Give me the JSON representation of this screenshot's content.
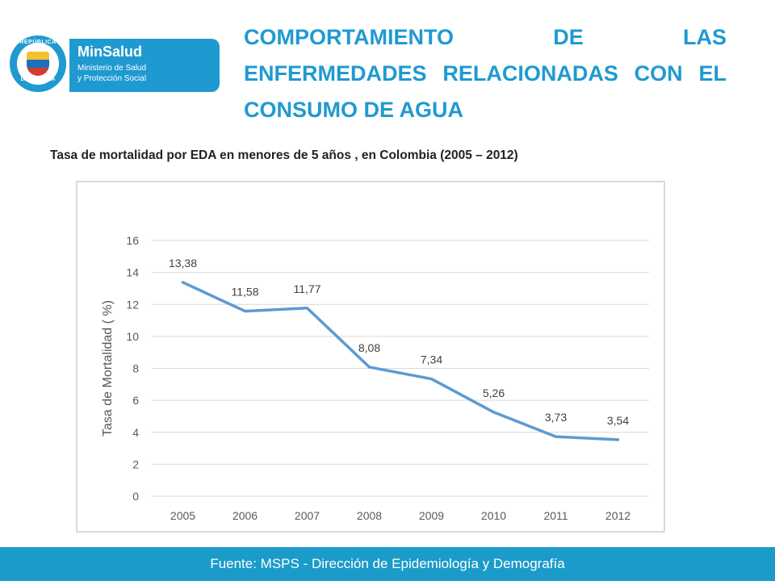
{
  "logo": {
    "crest_top": "REPÚBLICA",
    "crest_bottom": "DE COLOMBIA",
    "brand": "MinSalud",
    "brand_sub_1": "Ministerio de Salud",
    "brand_sub_2": "y Protección Social"
  },
  "header": {
    "title": "COMPORTAMIENTO DE LAS ENFERMEDADES RELACIONADAS CON EL CONSUMO DE AGUA"
  },
  "subtitle": "Tasa de mortalidad por EDA en menores de 5 años , en Colombia (2005 – 2012)",
  "footer": "Fuente: MSPS - Dirección de Epidemiología y Demografía",
  "colors": {
    "accent": "#1f9ad1",
    "line": "#5b9bd5",
    "footer": "#1b9bc9"
  },
  "chart_data": {
    "type": "line",
    "title": "",
    "xlabel": "",
    "ylabel": "Tasa de Mortalidad ( %)",
    "categories": [
      "2005",
      "2006",
      "2007",
      "2008",
      "2009",
      "2010",
      "2011",
      "2012"
    ],
    "series": [
      {
        "name": "Tasa de mortalidad por EDA",
        "values": [
          13.38,
          11.58,
          11.77,
          8.08,
          7.34,
          5.26,
          3.73,
          3.54
        ],
        "labels": [
          "13,38",
          "11,58",
          "11,77",
          "8,08",
          "7,34",
          "5,26",
          "3,73",
          "3,54"
        ]
      }
    ],
    "ylim": [
      0,
      16
    ],
    "yticks": [
      "0",
      "2",
      "4",
      "6",
      "8",
      "10",
      "12",
      "14",
      "16"
    ],
    "grid": true,
    "legend": "none"
  }
}
